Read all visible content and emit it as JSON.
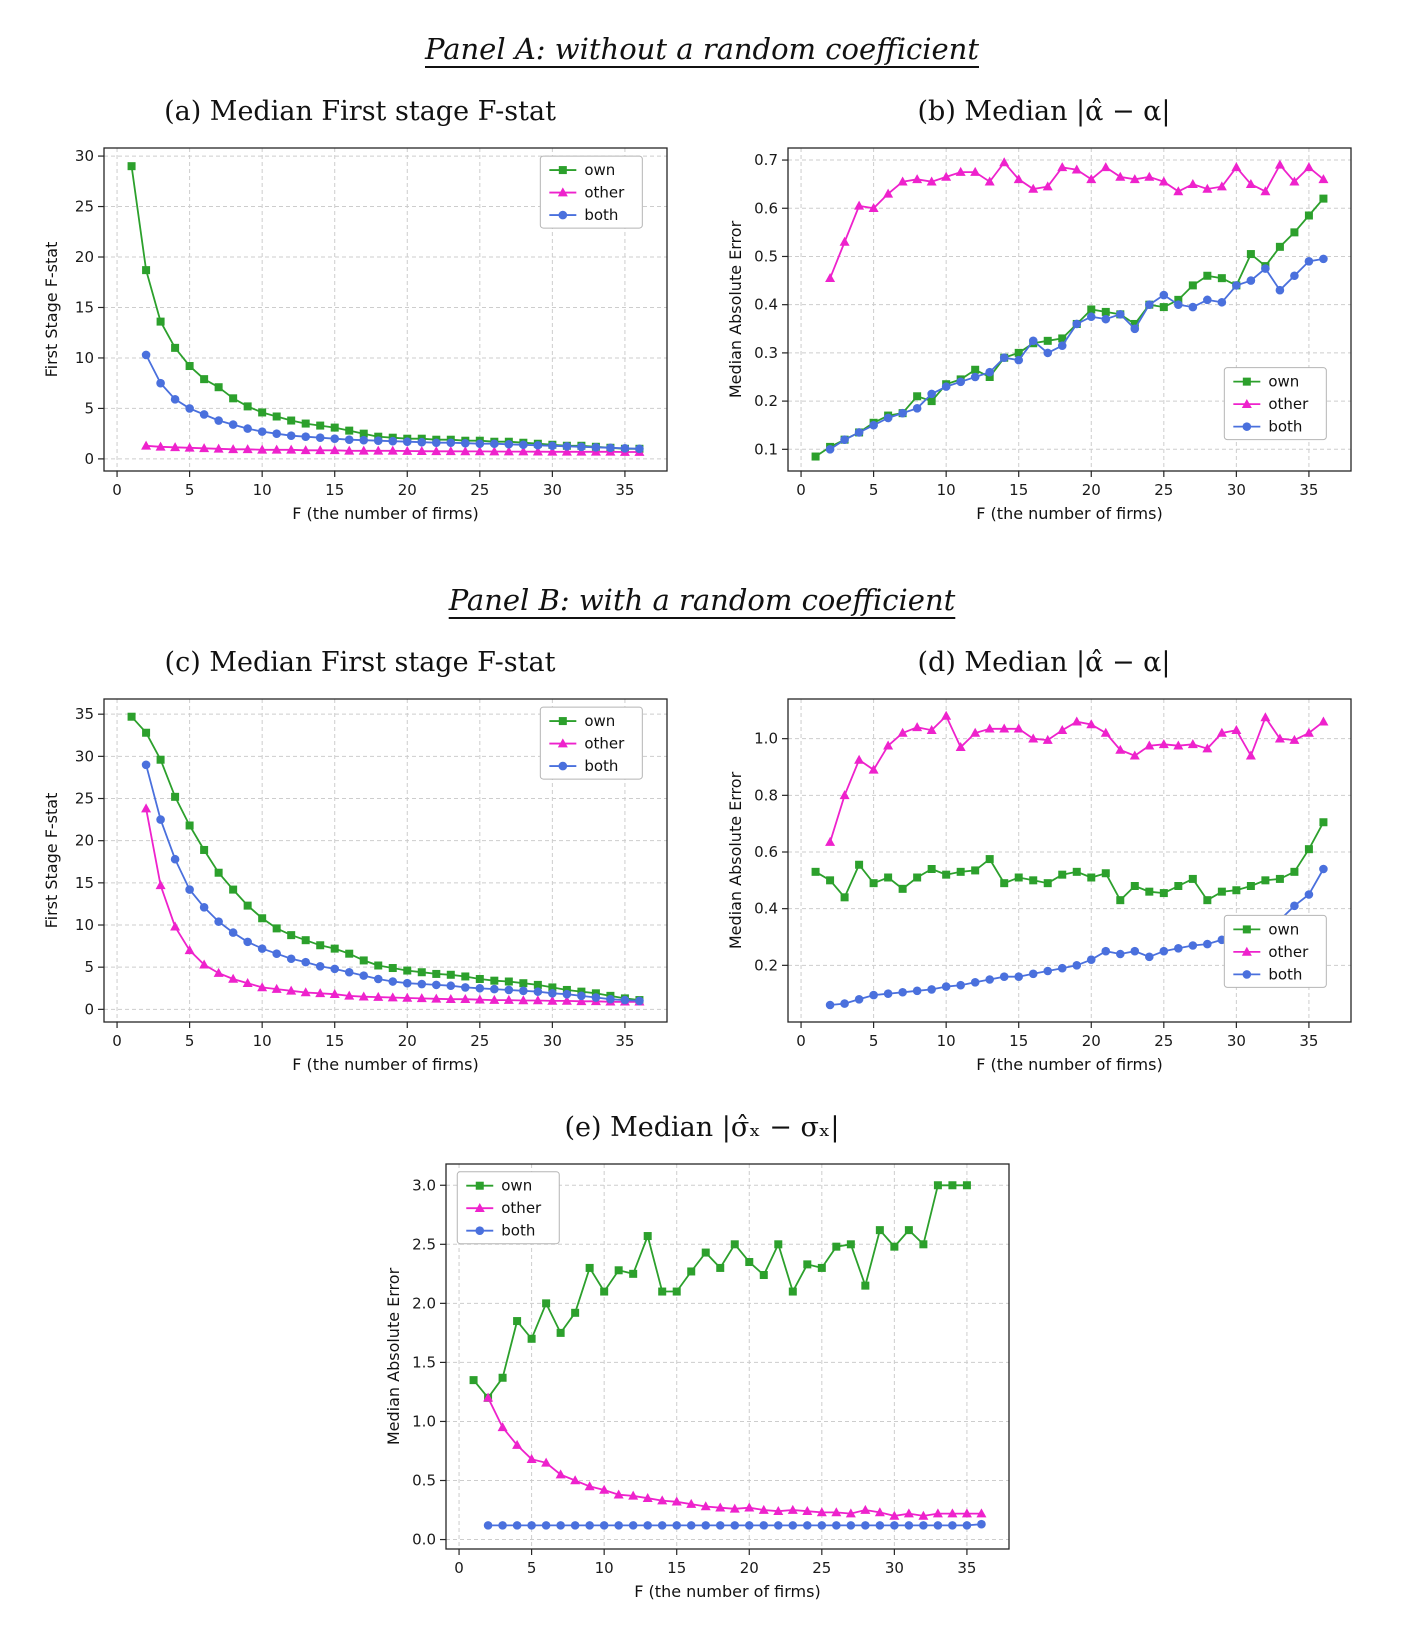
{
  "headings": {
    "panel_a": "Panel A: without a random coefficient",
    "panel_b": "Panel B: with a random coefficient"
  },
  "colors": {
    "own": "#2ca02c",
    "other": "#ee22cc",
    "both": "#4a70dd"
  },
  "legend_labels": [
    "own",
    "other",
    "both"
  ],
  "chart_data": [
    {
      "type": "line",
      "title": "(a) Median First stage F-stat",
      "xlabel": "F (the number of firms)",
      "ylabel": "First Stage F-stat",
      "xlim": [
        -0.9,
        37.9
      ],
      "ylim": [
        -1.2,
        30.8
      ],
      "xticks": [
        0,
        5,
        10,
        15,
        20,
        25,
        30,
        35
      ],
      "xtick_labels": [
        "0",
        "5",
        "10",
        "15",
        "20",
        "25",
        "30",
        "35"
      ],
      "yticks": [
        0,
        5,
        10,
        15,
        20,
        25,
        30
      ],
      "ytick_labels": [
        "0",
        "5",
        "10",
        "15",
        "20",
        "25",
        "30"
      ],
      "grid": true,
      "legend": {
        "position": "upper right",
        "x": 0.775,
        "y": 0.025
      },
      "series": [
        {
          "name": "own",
          "color": "#2ca02c",
          "marker": "square",
          "x_start": 1,
          "y": [
            29.0,
            18.7,
            13.6,
            11.0,
            9.2,
            7.9,
            7.1,
            6.0,
            5.2,
            4.6,
            4.2,
            3.8,
            3.5,
            3.3,
            3.1,
            2.8,
            2.5,
            2.2,
            2.1,
            2.0,
            2.0,
            1.9,
            1.9,
            1.8,
            1.8,
            1.7,
            1.7,
            1.6,
            1.5,
            1.4,
            1.3,
            1.3,
            1.2,
            1.1,
            1.0,
            1.0
          ]
        },
        {
          "name": "other",
          "color": "#ee22cc",
          "marker": "triangle",
          "x_start": 2,
          "y": [
            1.3,
            1.2,
            1.15,
            1.1,
            1.05,
            1.0,
            0.95,
            0.95,
            0.9,
            0.9,
            0.9,
            0.85,
            0.85,
            0.85,
            0.8,
            0.8,
            0.8,
            0.8,
            0.78,
            0.76,
            0.75,
            0.75,
            0.74,
            0.74,
            0.73,
            0.72,
            0.72,
            0.71,
            0.7,
            0.7,
            0.7,
            0.7,
            0.7,
            0.68,
            0.68
          ]
        },
        {
          "name": "both",
          "color": "#4a70dd",
          "marker": "circle",
          "x_start": 2,
          "y": [
            10.3,
            7.5,
            5.9,
            5.0,
            4.4,
            3.8,
            3.4,
            3.0,
            2.7,
            2.5,
            2.3,
            2.2,
            2.1,
            2.0,
            1.9,
            1.85,
            1.8,
            1.75,
            1.7,
            1.65,
            1.6,
            1.6,
            1.55,
            1.5,
            1.5,
            1.45,
            1.4,
            1.35,
            1.3,
            1.25,
            1.2,
            1.15,
            1.1,
            1.05,
            1.0
          ]
        }
      ]
    },
    {
      "type": "line",
      "title": "(b) Median |α̂ − α|",
      "xlabel": "F (the number of firms)",
      "ylabel": "Median Absolute Error",
      "xlim": [
        -0.9,
        37.9
      ],
      "ylim": [
        0.055,
        0.725
      ],
      "xticks": [
        0,
        5,
        10,
        15,
        20,
        25,
        30,
        35
      ],
      "xtick_labels": [
        "0",
        "5",
        "10",
        "15",
        "20",
        "25",
        "30",
        "35"
      ],
      "yticks": [
        0.1,
        0.2,
        0.3,
        0.4,
        0.5,
        0.6,
        0.7
      ],
      "ytick_labels": [
        "0.1",
        "0.2",
        "0.3",
        "0.4",
        "0.5",
        "0.6",
        "0.7"
      ],
      "grid": true,
      "legend": {
        "position": "lower right",
        "x": 0.775,
        "y": 0.68
      },
      "series": [
        {
          "name": "own",
          "color": "#2ca02c",
          "marker": "square",
          "x_start": 1,
          "y": [
            0.085,
            0.105,
            0.12,
            0.135,
            0.155,
            0.17,
            0.175,
            0.21,
            0.2,
            0.235,
            0.245,
            0.265,
            0.25,
            0.29,
            0.3,
            0.32,
            0.325,
            0.33,
            0.36,
            0.39,
            0.385,
            0.38,
            0.36,
            0.4,
            0.395,
            0.41,
            0.44,
            0.46,
            0.455,
            0.44,
            0.505,
            0.48,
            0.52,
            0.55,
            0.585,
            0.62
          ]
        },
        {
          "name": "other",
          "color": "#ee22cc",
          "marker": "triangle",
          "x_start": 2,
          "y": [
            0.455,
            0.53,
            0.605,
            0.6,
            0.63,
            0.655,
            0.66,
            0.655,
            0.665,
            0.675,
            0.675,
            0.655,
            0.695,
            0.66,
            0.64,
            0.645,
            0.685,
            0.68,
            0.66,
            0.685,
            0.665,
            0.66,
            0.665,
            0.655,
            0.635,
            0.65,
            0.64,
            0.645,
            0.685,
            0.65,
            0.635,
            0.69,
            0.655,
            0.685,
            0.66
          ]
        },
        {
          "name": "both",
          "color": "#4a70dd",
          "marker": "circle",
          "x_start": 2,
          "y": [
            0.1,
            0.12,
            0.135,
            0.15,
            0.165,
            0.175,
            0.185,
            0.215,
            0.23,
            0.24,
            0.25,
            0.26,
            0.29,
            0.285,
            0.325,
            0.3,
            0.315,
            0.36,
            0.375,
            0.37,
            0.38,
            0.35,
            0.4,
            0.42,
            0.4,
            0.395,
            0.41,
            0.405,
            0.44,
            0.45,
            0.475,
            0.43,
            0.46,
            0.49,
            0.495
          ]
        }
      ]
    },
    {
      "type": "line",
      "title": "(c) Median First stage F-stat",
      "xlabel": "F (the number of firms)",
      "ylabel": "First Stage F-stat",
      "xlim": [
        -0.9,
        37.9
      ],
      "ylim": [
        -1.5,
        36.8
      ],
      "xticks": [
        0,
        5,
        10,
        15,
        20,
        25,
        30,
        35
      ],
      "xtick_labels": [
        "0",
        "5",
        "10",
        "15",
        "20",
        "25",
        "30",
        "35"
      ],
      "yticks": [
        0,
        5,
        10,
        15,
        20,
        25,
        30,
        35
      ],
      "ytick_labels": [
        "0",
        "5",
        "10",
        "15",
        "20",
        "25",
        "30",
        "35"
      ],
      "grid": true,
      "legend": {
        "position": "upper right",
        "x": 0.775,
        "y": 0.025
      },
      "series": [
        {
          "name": "own",
          "color": "#2ca02c",
          "marker": "square",
          "x_start": 1,
          "y": [
            34.7,
            32.8,
            29.6,
            25.2,
            21.8,
            18.9,
            16.2,
            14.2,
            12.3,
            10.8,
            9.6,
            8.8,
            8.2,
            7.6,
            7.2,
            6.6,
            5.8,
            5.2,
            4.9,
            4.6,
            4.4,
            4.2,
            4.1,
            3.9,
            3.6,
            3.4,
            3.3,
            3.1,
            2.9,
            2.6,
            2.3,
            2.1,
            1.9,
            1.6,
            1.3,
            1.1
          ]
        },
        {
          "name": "other",
          "color": "#ee22cc",
          "marker": "triangle",
          "x_start": 2,
          "y": [
            23.8,
            14.7,
            9.8,
            7.0,
            5.3,
            4.3,
            3.6,
            3.1,
            2.6,
            2.4,
            2.2,
            2.0,
            1.9,
            1.8,
            1.6,
            1.5,
            1.45,
            1.4,
            1.35,
            1.3,
            1.25,
            1.2,
            1.2,
            1.15,
            1.1,
            1.1,
            1.05,
            1.05,
            1.0,
            1.0,
            0.95,
            0.95,
            0.9,
            0.9,
            0.9
          ]
        },
        {
          "name": "both",
          "color": "#4a70dd",
          "marker": "circle",
          "x_start": 2,
          "y": [
            29.0,
            22.5,
            17.8,
            14.2,
            12.1,
            10.4,
            9.1,
            8.0,
            7.2,
            6.6,
            6.0,
            5.6,
            5.1,
            4.8,
            4.4,
            4.0,
            3.6,
            3.3,
            3.1,
            3.0,
            2.9,
            2.8,
            2.6,
            2.5,
            2.4,
            2.3,
            2.2,
            2.1,
            1.9,
            1.8,
            1.6,
            1.4,
            1.2,
            1.1,
            1.0
          ]
        }
      ]
    },
    {
      "type": "line",
      "title": "(d) Median |α̂ − α|",
      "xlabel": "F (the number of firms)",
      "ylabel": "Median Absolute Error",
      "xlim": [
        -0.9,
        37.9
      ],
      "ylim": [
        0.0,
        1.14
      ],
      "xticks": [
        0,
        5,
        10,
        15,
        20,
        25,
        30,
        35
      ],
      "xtick_labels": [
        "0",
        "5",
        "10",
        "15",
        "20",
        "25",
        "30",
        "35"
      ],
      "yticks": [
        0.2,
        0.4,
        0.6,
        0.8,
        1.0
      ],
      "ytick_labels": [
        "0.2",
        "0.4",
        "0.6",
        "0.8",
        "1.0"
      ],
      "grid": true,
      "legend": {
        "position": "lower right",
        "x": 0.775,
        "y": 0.67
      },
      "series": [
        {
          "name": "own",
          "color": "#2ca02c",
          "marker": "square",
          "x_start": 1,
          "y": [
            0.53,
            0.5,
            0.44,
            0.555,
            0.49,
            0.51,
            0.47,
            0.51,
            0.54,
            0.52,
            0.53,
            0.535,
            0.575,
            0.49,
            0.51,
            0.5,
            0.49,
            0.52,
            0.53,
            0.51,
            0.525,
            0.43,
            0.48,
            0.46,
            0.455,
            0.48,
            0.505,
            0.43,
            0.46,
            0.465,
            0.48,
            0.5,
            0.505,
            0.53,
            0.61,
            0.705
          ]
        },
        {
          "name": "other",
          "color": "#ee22cc",
          "marker": "triangle",
          "x_start": 2,
          "y": [
            0.635,
            0.8,
            0.925,
            0.89,
            0.975,
            1.02,
            1.04,
            1.03,
            1.08,
            0.97,
            1.02,
            1.035,
            1.035,
            1.035,
            1.0,
            0.995,
            1.03,
            1.06,
            1.05,
            1.02,
            0.96,
            0.94,
            0.975,
            0.98,
            0.975,
            0.98,
            0.965,
            1.02,
            1.03,
            0.94,
            1.075,
            1.0,
            0.995,
            1.02,
            1.06
          ]
        },
        {
          "name": "both",
          "color": "#4a70dd",
          "marker": "circle",
          "x_start": 2,
          "y": [
            0.06,
            0.065,
            0.08,
            0.095,
            0.1,
            0.105,
            0.11,
            0.115,
            0.125,
            0.13,
            0.14,
            0.15,
            0.16,
            0.16,
            0.17,
            0.18,
            0.19,
            0.2,
            0.22,
            0.25,
            0.24,
            0.25,
            0.23,
            0.25,
            0.26,
            0.27,
            0.275,
            0.29,
            0.3,
            0.31,
            0.34,
            0.36,
            0.41,
            0.45,
            0.54
          ]
        }
      ]
    },
    {
      "type": "line",
      "title": "(e) Median |σ̂ₓ − σₓ|",
      "xlabel": "F (the number of firms)",
      "ylabel": "Median Absolute Error",
      "xlim": [
        -0.9,
        37.9
      ],
      "ylim": [
        -0.08,
        3.18
      ],
      "xticks": [
        0,
        5,
        10,
        15,
        20,
        25,
        30,
        35
      ],
      "xtick_labels": [
        "0",
        "5",
        "10",
        "15",
        "20",
        "25",
        "30",
        "35"
      ],
      "yticks": [
        0.0,
        0.5,
        1.0,
        1.5,
        2.0,
        2.5,
        3.0
      ],
      "ytick_labels": [
        "0.0",
        "0.5",
        "1.0",
        "1.5",
        "2.0",
        "2.5",
        "3.0"
      ],
      "grid": true,
      "legend": {
        "position": "upper left",
        "x": 0.02,
        "y": 0.02
      },
      "series": [
        {
          "name": "own",
          "color": "#2ca02c",
          "marker": "square",
          "x_start": 1,
          "y": [
            1.35,
            1.2,
            1.37,
            1.85,
            1.7,
            2.0,
            1.75,
            1.92,
            2.3,
            2.1,
            2.28,
            2.25,
            2.57,
            2.1,
            2.1,
            2.27,
            2.43,
            2.3,
            2.5,
            2.35,
            2.24,
            2.5,
            2.1,
            2.33,
            2.3,
            2.48,
            2.5,
            2.15,
            2.62,
            2.48,
            2.62,
            2.5,
            3.0,
            3.0,
            3.0
          ]
        },
        {
          "name": "other",
          "color": "#ee22cc",
          "marker": "triangle",
          "x_start": 2,
          "y": [
            1.2,
            0.95,
            0.8,
            0.68,
            0.65,
            0.55,
            0.5,
            0.45,
            0.42,
            0.38,
            0.37,
            0.35,
            0.33,
            0.32,
            0.3,
            0.28,
            0.27,
            0.26,
            0.27,
            0.25,
            0.24,
            0.25,
            0.24,
            0.23,
            0.23,
            0.22,
            0.25,
            0.23,
            0.2,
            0.22,
            0.2,
            0.22,
            0.22,
            0.22,
            0.22
          ]
        },
        {
          "name": "both",
          "color": "#4a70dd",
          "marker": "circle",
          "x_start": 2,
          "y": [
            0.12,
            0.12,
            0.12,
            0.12,
            0.12,
            0.12,
            0.12,
            0.12,
            0.12,
            0.12,
            0.12,
            0.12,
            0.12,
            0.12,
            0.12,
            0.12,
            0.12,
            0.12,
            0.12,
            0.12,
            0.12,
            0.12,
            0.12,
            0.12,
            0.12,
            0.12,
            0.12,
            0.12,
            0.12,
            0.12,
            0.12,
            0.12,
            0.12,
            0.12,
            0.13
          ]
        }
      ]
    }
  ]
}
